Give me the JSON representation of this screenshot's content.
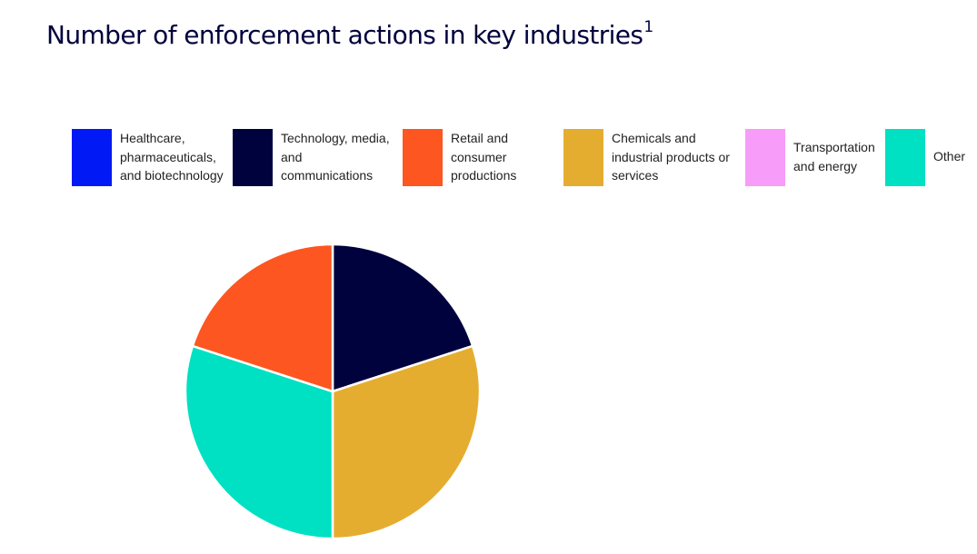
{
  "title": "Number of enforcement actions in key industries",
  "title_footnote": "1",
  "legend": [
    {
      "label": "Healthcare,\npharmaceuticals,\nand biotechnology",
      "color": "#0019f5"
    },
    {
      "label": "Technology, media,\nand\ncommunications",
      "color": "#00023d"
    },
    {
      "label": "Retail and\nconsumer\nproductions",
      "color": "#fe5620"
    },
    {
      "label": "Chemicals and\nindustrial products or\nservices",
      "color": "#e5ad30"
    },
    {
      "label": "Transportation\nand energy",
      "color": "#f79cf8"
    },
    {
      "label": "Other",
      "color": "#00e0c3"
    }
  ],
  "chart_data": {
    "type": "pie",
    "title": "Number of enforcement actions in key industries",
    "start_angle_deg": 0,
    "direction": "clockwise",
    "legend_position": "top",
    "slices": [
      {
        "name": "Healthcare, pharmaceuticals, and biotechnology",
        "value": 0,
        "color": "#0019f5"
      },
      {
        "name": "Technology, media, and communications",
        "value": 2,
        "color": "#00023d"
      },
      {
        "name": "Chemicals and industrial products or services",
        "value": 3,
        "color": "#e5ad30"
      },
      {
        "name": "Transportation and energy",
        "value": 0,
        "color": "#f79cf8"
      },
      {
        "name": "Other",
        "value": 3,
        "color": "#00e0c3"
      },
      {
        "name": "Retail and consumer productions",
        "value": 2,
        "color": "#fe5620"
      }
    ]
  }
}
